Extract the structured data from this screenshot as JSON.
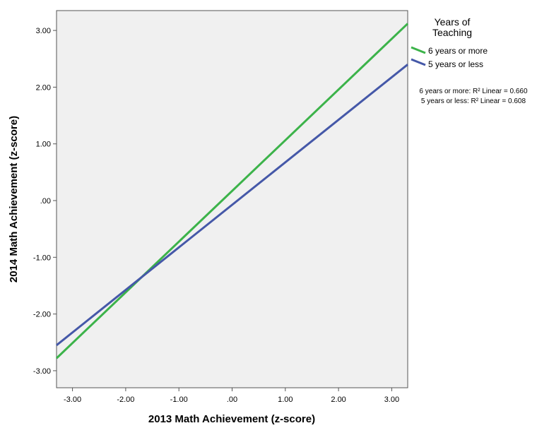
{
  "chart_data": {
    "type": "line",
    "xlabel": "2013 Math Achievement (z-score)",
    "ylabel": "2014 Math Achievement (z-score)",
    "xlim": [
      -3.3,
      3.3
    ],
    "ylim": [
      -3.3,
      3.35
    ],
    "x_ticks": [
      -3,
      -2,
      -1,
      0,
      1,
      2,
      3
    ],
    "x_tick_labels": [
      "-3.00",
      "-2.00",
      "-1.00",
      ".00",
      "1.00",
      "2.00",
      "3.00"
    ],
    "y_ticks": [
      -3,
      -2,
      -1,
      0,
      1,
      2,
      3
    ],
    "y_tick_labels": [
      "-3.00",
      "-2.00",
      "-1.00",
      ".00",
      "1.00",
      "2.00",
      "3.00"
    ],
    "grid": false,
    "plot_background": "#f0f0f0",
    "legend": {
      "title_lines": [
        "Years of",
        "Teaching"
      ],
      "placement": "right"
    },
    "series": [
      {
        "name": "6 years or more",
        "color": "#3cb34a",
        "x": [
          -3.3,
          3.3
        ],
        "y": [
          -2.78,
          3.12
        ],
        "r2_label": "6 years or more: R² Linear = 0.660"
      },
      {
        "name": "5 years or less",
        "color": "#4558a8",
        "x": [
          -3.3,
          3.3
        ],
        "y": [
          -2.55,
          2.4
        ],
        "r2_label": "5 years or less: R² Linear = 0.608"
      }
    ]
  }
}
